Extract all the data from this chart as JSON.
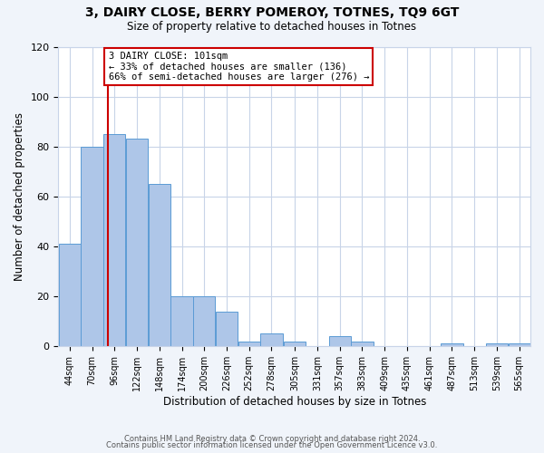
{
  "title": "3, DAIRY CLOSE, BERRY POMEROY, TOTNES, TQ9 6GT",
  "subtitle": "Size of property relative to detached houses in Totnes",
  "xlabel": "Distribution of detached houses by size in Totnes",
  "ylabel": "Number of detached properties",
  "bin_labels": [
    "44sqm",
    "70sqm",
    "96sqm",
    "122sqm",
    "148sqm",
    "174sqm",
    "200sqm",
    "226sqm",
    "252sqm",
    "278sqm",
    "305sqm",
    "331sqm",
    "357sqm",
    "383sqm",
    "409sqm",
    "435sqm",
    "461sqm",
    "487sqm",
    "513sqm",
    "539sqm",
    "565sqm"
  ],
  "bin_edges": [
    44,
    70,
    96,
    122,
    148,
    174,
    200,
    226,
    252,
    278,
    305,
    331,
    357,
    383,
    409,
    435,
    461,
    487,
    513,
    539,
    565
  ],
  "bar_heights": [
    41,
    80,
    85,
    83,
    65,
    20,
    20,
    14,
    2,
    5,
    2,
    0,
    4,
    2,
    0,
    0,
    0,
    1,
    0,
    1,
    1
  ],
  "bar_color": "#aec6e8",
  "bar_edge_color": "#5b9bd5",
  "vline_x": 101,
  "vline_color": "#cc0000",
  "annotation_text": "3 DAIRY CLOSE: 101sqm\n← 33% of detached houses are smaller (136)\n66% of semi-detached houses are larger (276) →",
  "annotation_box_color": "#ffffff",
  "annotation_box_edge_color": "#cc0000",
  "ylim": [
    0,
    120
  ],
  "yticks": [
    0,
    20,
    40,
    60,
    80,
    100,
    120
  ],
  "footer1": "Contains HM Land Registry data © Crown copyright and database right 2024.",
  "footer2": "Contains public sector information licensed under the Open Government Licence v3.0.",
  "background_color": "#f0f4fa",
  "plot_background_color": "#ffffff",
  "grid_color": "#c8d4e8"
}
